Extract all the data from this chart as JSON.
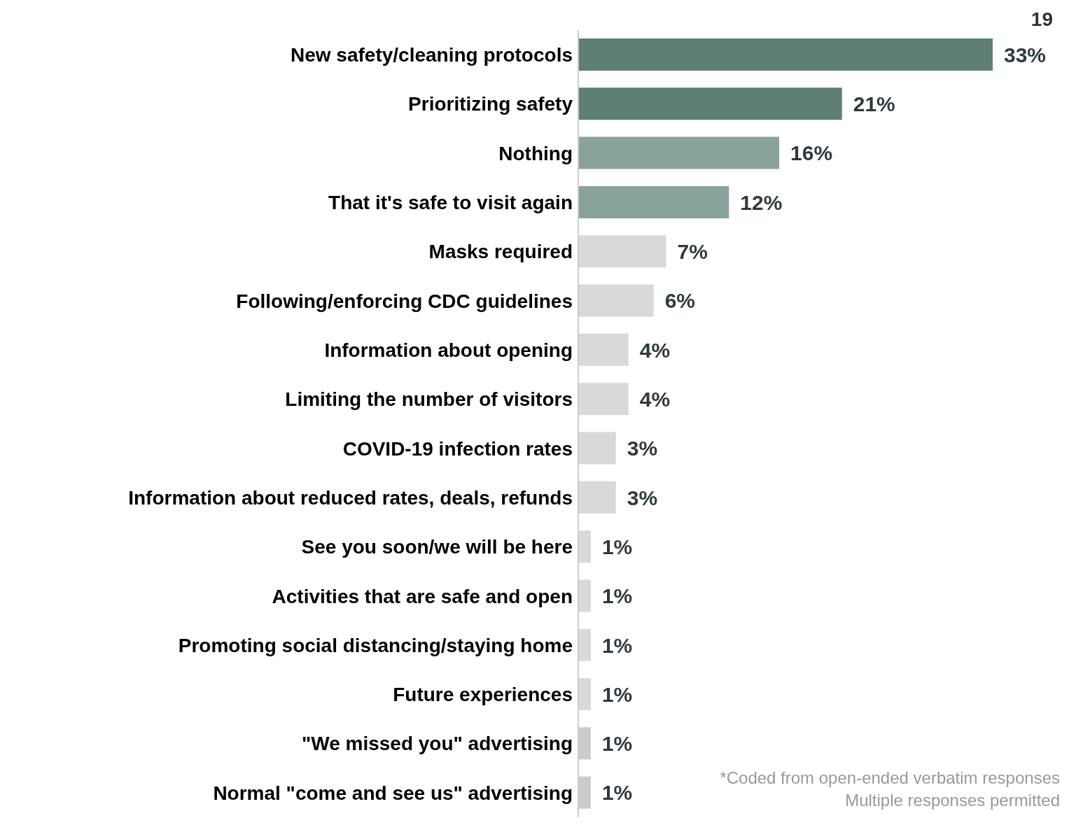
{
  "chart_data": {
    "type": "bar",
    "orientation": "horizontal",
    "categories": [
      "New safety/cleaning protocols",
      "Prioritizing safety",
      "Nothing",
      "That it's safe to visit again",
      "Masks required",
      "Following/enforcing CDC guidelines",
      "Information about opening",
      "Limiting the number of visitors",
      "COVID-19 infection rates",
      "Information about reduced rates, deals, refunds",
      "See you soon/we will be here",
      "Activities that are safe and open",
      "Promoting social distancing/staying home",
      "Future experiences",
      "\"We missed you\" advertising",
      "Normal \"come and see us\" advertising"
    ],
    "values": [
      33,
      21,
      16,
      12,
      7,
      6,
      4,
      4,
      3,
      3,
      1,
      1,
      1,
      1,
      1,
      1
    ],
    "value_labels": [
      "33%",
      "21%",
      "16%",
      "12%",
      "7%",
      "6%",
      "4%",
      "4%",
      "3%",
      "3%",
      "1%",
      "1%",
      "1%",
      "1%",
      "1%",
      "1%"
    ],
    "colors": [
      "#5f7f74",
      "#5f7f74",
      "#87a39b",
      "#87a39b",
      "#d9d9d9",
      "#d9d9d9",
      "#d9d9d9",
      "#d9d9d9",
      "#d9d9d9",
      "#d9d9d9",
      "#d9d9d9",
      "#d9d9d9",
      "#d9d9d9",
      "#d9d9d9",
      "#cccccc",
      "#cccccc"
    ],
    "annotations": [
      "19",
      "*Coded from open-ended verbatim responses",
      "Multiple responses permitted"
    ]
  }
}
